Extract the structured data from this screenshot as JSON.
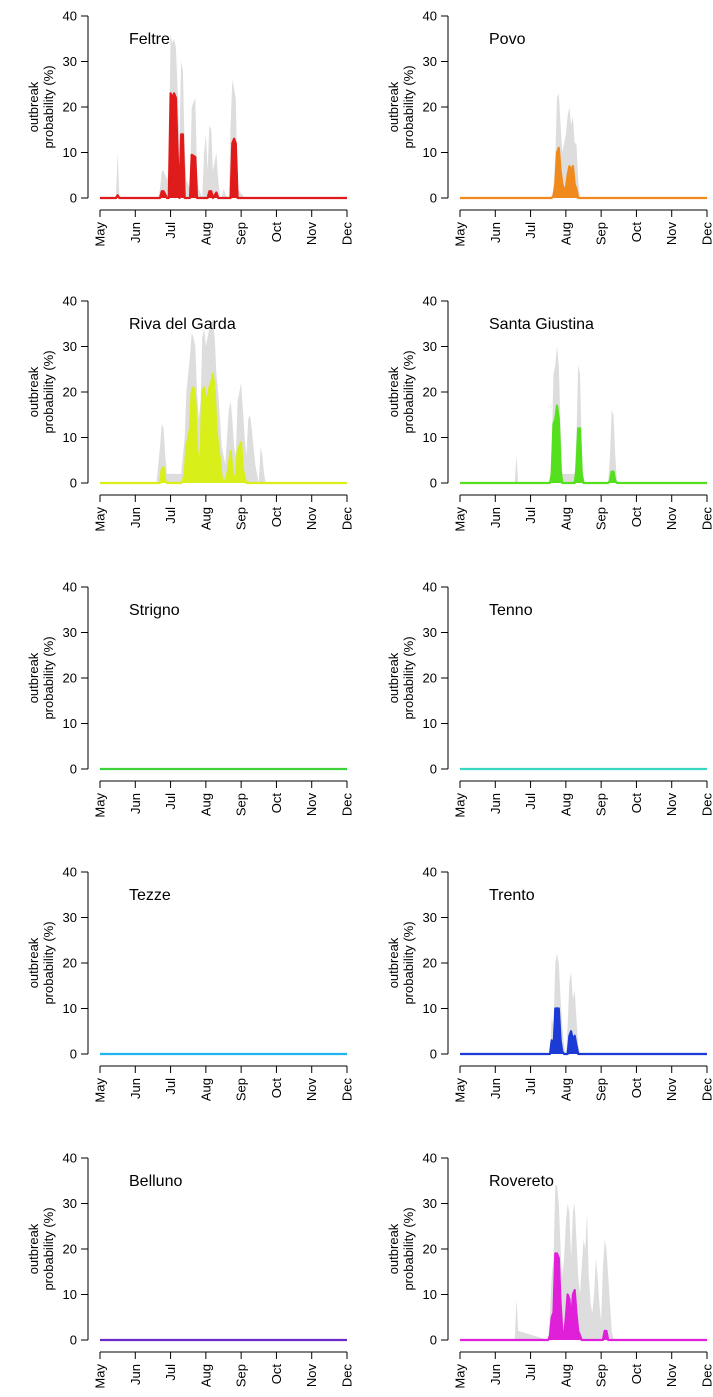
{
  "chart_data": [
    {
      "type": "area",
      "title": "Feltre",
      "ylabel_lines": [
        "outbreak",
        "probability (%)"
      ],
      "color": "#e01b1b",
      "ylim": [
        0,
        40
      ],
      "yticks": [
        0,
        10,
        20,
        30,
        40
      ],
      "months": [
        "May",
        "Jun",
        "Jul",
        "Aug",
        "Sep",
        "Oct",
        "Nov",
        "Dec"
      ],
      "x": [
        1,
        1.45,
        1.5,
        1.55,
        2.65,
        2.7,
        2.75,
        2.8,
        2.9,
        2.95,
        3.0,
        3.05,
        3.1,
        3.15,
        3.2,
        3.25,
        3.3,
        3.35,
        3.4,
        3.45,
        3.55,
        3.6,
        3.7,
        3.75,
        3.8,
        3.9,
        3.95,
        4.0,
        4.05,
        4.1,
        4.15,
        4.2,
        4.3,
        4.35,
        4.4,
        4.45,
        4.5,
        4.6,
        4.65,
        4.7,
        4.75,
        4.8,
        4.85,
        4.9,
        5.1,
        5.2,
        5.3,
        5.35,
        5.4,
        5.45,
        5.5,
        5.55,
        5.6,
        8
      ],
      "y": [
        0,
        0,
        0.6,
        0,
        0,
        0,
        1.5,
        1.5,
        0,
        0,
        23,
        22,
        23,
        22,
        10,
        0,
        14,
        14,
        0,
        0,
        0,
        9.5,
        9,
        0,
        0,
        0,
        0,
        0,
        0,
        1.5,
        1.5,
        0,
        1.2,
        0,
        0,
        0,
        0,
        0,
        0,
        0,
        12,
        13,
        12,
        0,
        0,
        0,
        0,
        0,
        0,
        0,
        0,
        0,
        0,
        0
      ],
      "upper": [
        0,
        0,
        10,
        0,
        0,
        2,
        6,
        6,
        4,
        6,
        36,
        34,
        35,
        33,
        24,
        13,
        30,
        28,
        11,
        4,
        2,
        20,
        22,
        6,
        2,
        0,
        10,
        14,
        6,
        16,
        15,
        6,
        10,
        4,
        0,
        0,
        2,
        0,
        0,
        16,
        26,
        24,
        22,
        2,
        0,
        0,
        0,
        0,
        0,
        0,
        0,
        0,
        0,
        0
      ]
    },
    {
      "type": "area",
      "title": "Povo",
      "ylabel_lines": [
        "outbreak",
        "probability (%)"
      ],
      "color": "#f08a1c",
      "ylim": [
        0,
        40
      ],
      "yticks": [
        0,
        10,
        20,
        30,
        40
      ],
      "months": [
        "May",
        "Jun",
        "Jul",
        "Aug",
        "Sep",
        "Oct",
        "Nov",
        "Dec"
      ],
      "x": [
        1,
        3.6,
        3.65,
        3.7,
        3.75,
        3.8,
        3.85,
        3.9,
        3.95,
        4.0,
        4.05,
        4.1,
        4.15,
        4.2,
        4.25,
        4.3,
        4.35,
        4.4,
        4.45,
        4.5,
        8
      ],
      "y": [
        0,
        0,
        0.5,
        3,
        10,
        11,
        6,
        3,
        2,
        2,
        5,
        7,
        6,
        7,
        3,
        2,
        0,
        0,
        0,
        0,
        0
      ],
      "upper": [
        0,
        0,
        2,
        9,
        22,
        23,
        16,
        10,
        12,
        14,
        18,
        20,
        16,
        18,
        12,
        12,
        4,
        0,
        0,
        0,
        0
      ]
    },
    {
      "type": "area",
      "title": "Riva del Garda",
      "ylabel_lines": [
        "outbreak",
        "probability (%)"
      ],
      "color": "#d8ef1a",
      "ylim": [
        0,
        40
      ],
      "yticks": [
        0,
        10,
        20,
        30,
        40
      ],
      "months": [
        "May",
        "Jun",
        "Jul",
        "Aug",
        "Sep",
        "Oct",
        "Nov",
        "Dec"
      ],
      "x": [
        1,
        2.6,
        2.7,
        2.75,
        2.8,
        2.85,
        2.9,
        3.3,
        3.35,
        3.4,
        3.45,
        3.5,
        3.55,
        3.6,
        3.65,
        3.7,
        3.75,
        3.8,
        3.85,
        3.9,
        3.95,
        4.0,
        4.05,
        4.1,
        4.15,
        4.2,
        4.25,
        4.3,
        4.35,
        4.4,
        4.45,
        4.5,
        4.55,
        4.6,
        4.65,
        4.7,
        4.75,
        4.8,
        4.85,
        4.9,
        4.95,
        5.0,
        5.05,
        5.1,
        5.15,
        5.2,
        5.25,
        5.3,
        5.35,
        5.4,
        5.45,
        5.5,
        5.55,
        5.6,
        5.65,
        5.7,
        5.75,
        8
      ],
      "y": [
        0,
        0,
        0,
        3,
        3.5,
        0.5,
        0,
        0,
        0.5,
        2,
        8,
        10,
        12,
        20,
        21,
        18,
        8,
        4,
        6,
        20,
        21,
        18,
        19,
        21,
        22,
        24,
        20,
        12,
        8,
        5,
        1,
        0.5,
        0.5,
        1.5,
        4,
        7,
        3,
        1,
        0.5,
        7,
        8,
        9,
        3,
        1,
        0,
        0,
        0,
        0,
        0,
        0,
        0,
        0,
        0,
        0,
        0,
        0,
        0,
        0
      ],
      "upper": [
        0,
        0,
        8,
        13,
        12,
        6,
        2,
        2,
        6,
        10,
        20,
        24,
        28,
        33,
        32,
        30,
        20,
        14,
        18,
        32,
        34,
        30,
        32,
        34,
        35,
        36,
        32,
        24,
        20,
        14,
        8,
        6,
        4,
        10,
        16,
        18,
        14,
        8,
        6,
        18,
        20,
        22,
        16,
        10,
        6,
        14,
        15,
        12,
        8,
        4,
        2,
        0,
        8,
        6,
        2,
        0,
        0,
        0
      ]
    },
    {
      "type": "area",
      "title": "Santa Giustina",
      "ylabel_lines": [
        "outbreak",
        "probability (%)"
      ],
      "color": "#55e01e",
      "ylim": [
        0,
        40
      ],
      "yticks": [
        0,
        10,
        20,
        30,
        40
      ],
      "months": [
        "May",
        "Jun",
        "Jul",
        "Aug",
        "Sep",
        "Oct",
        "Nov",
        "Dec"
      ],
      "x": [
        1,
        2.55,
        2.6,
        2.65,
        3.55,
        3.6,
        3.65,
        3.7,
        3.75,
        3.8,
        3.85,
        3.9,
        4.25,
        4.3,
        4.35,
        4.4,
        4.45,
        4.5,
        5.2,
        5.25,
        5.3,
        5.35,
        5.4,
        5.45,
        8
      ],
      "y": [
        0,
        0,
        0,
        0,
        0,
        2,
        13,
        14,
        17,
        14,
        3,
        0,
        0,
        3,
        12,
        12,
        2,
        0,
        0,
        0.5,
        2.5,
        2.5,
        0.5,
        0,
        0
      ],
      "upper": [
        0,
        0,
        6,
        0,
        0,
        8,
        24,
        26,
        30,
        26,
        12,
        2,
        2,
        10,
        26,
        24,
        8,
        0,
        0,
        6,
        16,
        15,
        6,
        0,
        0
      ]
    },
    {
      "type": "area",
      "title": "Strigno",
      "ylabel_lines": [
        "outbreak",
        "probability (%)"
      ],
      "color": "#3fd13a",
      "ylim": [
        0,
        40
      ],
      "yticks": [
        0,
        10,
        20,
        30,
        40
      ],
      "months": [
        "May",
        "Jun",
        "Jul",
        "Aug",
        "Sep",
        "Oct",
        "Nov",
        "Dec"
      ],
      "x": [
        1,
        8
      ],
      "y": [
        0,
        0
      ],
      "upper": [
        0,
        0
      ]
    },
    {
      "type": "area",
      "title": "Tenno",
      "ylabel_lines": [
        "outbreak",
        "probability (%)"
      ],
      "color": "#3ad6c2",
      "ylim": [
        0,
        40
      ],
      "yticks": [
        0,
        10,
        20,
        30,
        40
      ],
      "months": [
        "May",
        "Jun",
        "Jul",
        "Aug",
        "Sep",
        "Oct",
        "Nov",
        "Dec"
      ],
      "x": [
        1,
        8
      ],
      "y": [
        0,
        0
      ],
      "upper": [
        0,
        0
      ]
    },
    {
      "type": "area",
      "title": "Tezze",
      "ylabel_lines": [
        "outbreak",
        "probability (%)"
      ],
      "color": "#22b4ef",
      "ylim": [
        0,
        40
      ],
      "yticks": [
        0,
        10,
        20,
        30,
        40
      ],
      "months": [
        "May",
        "Jun",
        "Jul",
        "Aug",
        "Sep",
        "Oct",
        "Nov",
        "Dec"
      ],
      "x": [
        1,
        8
      ],
      "y": [
        0,
        0
      ],
      "upper": [
        0,
        0
      ]
    },
    {
      "type": "area",
      "title": "Trento",
      "ylabel_lines": [
        "outbreak",
        "probability (%)"
      ],
      "color": "#1b3ad6",
      "ylim": [
        0,
        40
      ],
      "yticks": [
        0,
        10,
        20,
        30,
        40
      ],
      "months": [
        "May",
        "Jun",
        "Jul",
        "Aug",
        "Sep",
        "Oct",
        "Nov",
        "Dec"
      ],
      "x": [
        1,
        3.55,
        3.6,
        3.65,
        3.7,
        3.75,
        3.8,
        3.85,
        3.9,
        3.95,
        4.0,
        4.05,
        4.1,
        4.15,
        4.2,
        4.25,
        4.3,
        4.35,
        4.4,
        8
      ],
      "y": [
        0,
        0,
        3,
        1,
        10,
        10,
        10,
        3,
        0.5,
        0,
        0,
        0,
        4,
        5,
        3,
        4,
        2,
        0,
        0,
        0
      ],
      "upper": [
        0,
        0,
        8,
        6,
        20,
        22,
        20,
        12,
        6,
        2,
        0,
        6,
        16,
        18,
        12,
        14,
        8,
        2,
        0,
        0
      ]
    },
    {
      "type": "area",
      "title": "Belluno",
      "ylabel_lines": [
        "outbreak",
        "probability (%)"
      ],
      "color": "#6a2bc9",
      "ylim": [
        0,
        40
      ],
      "yticks": [
        0,
        10,
        20,
        30,
        40
      ],
      "months": [
        "May",
        "Jun",
        "Jul",
        "Aug",
        "Sep",
        "Oct",
        "Nov",
        "Dec"
      ],
      "x": [
        1,
        8
      ],
      "y": [
        0,
        0
      ],
      "upper": [
        0,
        0
      ]
    },
    {
      "type": "area",
      "title": "Rovereto",
      "ylabel_lines": [
        "outbreak",
        "probability (%)"
      ],
      "color": "#e020d8",
      "ylim": [
        0,
        40
      ],
      "yticks": [
        0,
        10,
        20,
        30,
        40
      ],
      "months": [
        "May",
        "Jun",
        "Jul",
        "Aug",
        "Sep",
        "Oct",
        "Nov",
        "Dec"
      ],
      "x": [
        1,
        2.55,
        2.6,
        2.65,
        3.5,
        3.55,
        3.6,
        3.65,
        3.7,
        3.75,
        3.8,
        3.85,
        3.9,
        3.95,
        4.0,
        4.05,
        4.1,
        4.15,
        4.2,
        4.25,
        4.3,
        4.35,
        4.4,
        4.45,
        4.5,
        4.55,
        4.6,
        4.65,
        4.7,
        4.75,
        4.8,
        4.85,
        4.9,
        4.95,
        5.0,
        5.05,
        5.1,
        5.15,
        5.2,
        5.25,
        5.3,
        5.35,
        5.4,
        8
      ],
      "y": [
        0,
        0,
        0,
        0,
        0,
        1,
        5,
        6,
        19,
        19,
        18,
        8,
        2,
        1,
        5,
        10,
        9,
        4,
        10,
        11,
        6,
        2,
        1,
        0,
        0,
        0,
        0,
        0,
        0,
        0,
        0,
        0,
        0,
        0,
        0,
        0,
        2,
        2,
        0,
        0,
        0,
        0,
        0,
        0
      ],
      "upper": [
        0,
        0,
        9,
        2,
        0,
        6,
        14,
        18,
        34,
        34,
        30,
        20,
        14,
        18,
        26,
        30,
        28,
        18,
        28,
        30,
        22,
        14,
        10,
        16,
        22,
        20,
        28,
        14,
        8,
        6,
        10,
        18,
        14,
        8,
        4,
        16,
        22,
        20,
        14,
        8,
        2,
        0,
        0,
        0
      ]
    }
  ]
}
